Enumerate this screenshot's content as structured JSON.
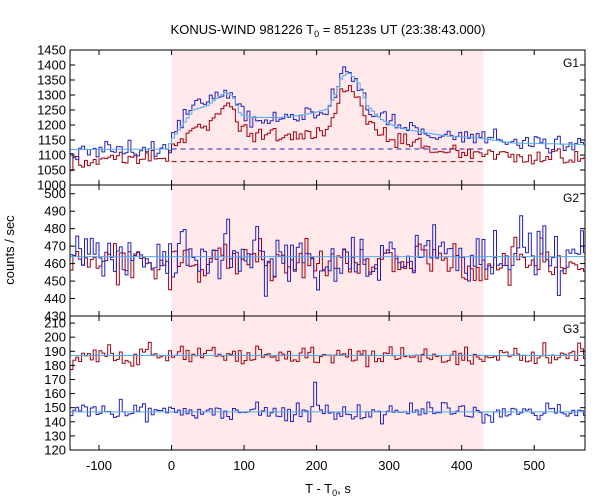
{
  "title": "KONUS-WIND 981226 T",
  "title_sub": "0",
  "title_rest": " = 85123s UT (23:38:43.000)",
  "ylabel": "counts / sec",
  "xlabel_main": "T - T",
  "xlabel_sub": "0",
  "xlabel_rest": ", s",
  "colors": {
    "highlight": "#ffe9ea",
    "blue": "#2222bb",
    "red": "#a00010",
    "fit": "#55aaee"
  },
  "chart_data": {
    "type": "line",
    "x_range": [
      -140,
      570
    ],
    "x_ticks": [
      -100,
      0,
      100,
      200,
      300,
      400,
      500
    ],
    "highlight_interval": [
      0,
      430
    ],
    "bin_width": 4,
    "panels": [
      {
        "label": "G1",
        "ylim": [
          1000,
          1450
        ],
        "y_ticks": [
          1000,
          1050,
          1100,
          1150,
          1200,
          1250,
          1300,
          1350,
          1400,
          1450
        ],
        "background_levels": {
          "blue": 1120,
          "red": 1078
        },
        "background_dash_range": [
          0,
          430
        ],
        "blue_profile": [
          [
            -140,
            1115
          ],
          [
            -5,
            1120
          ],
          [
            0,
            1150
          ],
          [
            15,
            1205
          ],
          [
            30,
            1260
          ],
          [
            50,
            1270
          ],
          [
            60,
            1290
          ],
          [
            75,
            1320
          ],
          [
            85,
            1300
          ],
          [
            95,
            1235
          ],
          [
            110,
            1225
          ],
          [
            150,
            1225
          ],
          [
            180,
            1235
          ],
          [
            200,
            1245
          ],
          [
            215,
            1255
          ],
          [
            225,
            1300
          ],
          [
            235,
            1370
          ],
          [
            245,
            1390
          ],
          [
            258,
            1345
          ],
          [
            270,
            1270
          ],
          [
            290,
            1220
          ],
          [
            310,
            1195
          ],
          [
            340,
            1180
          ],
          [
            380,
            1165
          ],
          [
            420,
            1160
          ],
          [
            470,
            1140
          ],
          [
            570,
            1130
          ]
        ],
        "red_profile": [
          [
            -140,
            1085
          ],
          [
            -5,
            1090
          ],
          [
            0,
            1115
          ],
          [
            15,
            1150
          ],
          [
            30,
            1185
          ],
          [
            50,
            1200
          ],
          [
            60,
            1230
          ],
          [
            75,
            1270
          ],
          [
            85,
            1250
          ],
          [
            95,
            1175
          ],
          [
            110,
            1165
          ],
          [
            150,
            1165
          ],
          [
            180,
            1170
          ],
          [
            200,
            1175
          ],
          [
            215,
            1185
          ],
          [
            225,
            1240
          ],
          [
            235,
            1300
          ],
          [
            245,
            1320
          ],
          [
            258,
            1290
          ],
          [
            270,
            1210
          ],
          [
            290,
            1165
          ],
          [
            310,
            1145
          ],
          [
            340,
            1130
          ],
          [
            380,
            1115
          ],
          [
            420,
            1110
          ],
          [
            470,
            1095
          ],
          [
            570,
            1090
          ]
        ],
        "blue_noise": 15,
        "red_noise": 13,
        "blue_fit_profile": [
          [
            -140,
            1118
          ],
          [
            -5,
            1120
          ],
          [
            0,
            1150
          ],
          [
            15,
            1200
          ],
          [
            30,
            1250
          ],
          [
            50,
            1265
          ],
          [
            60,
            1285
          ],
          [
            75,
            1310
          ],
          [
            85,
            1295
          ],
          [
            95,
            1235
          ],
          [
            110,
            1225
          ],
          [
            150,
            1225
          ],
          [
            180,
            1233
          ],
          [
            200,
            1243
          ],
          [
            215,
            1253
          ],
          [
            225,
            1295
          ],
          [
            235,
            1360
          ],
          [
            245,
            1375
          ],
          [
            258,
            1340
          ],
          [
            270,
            1265
          ],
          [
            290,
            1218
          ],
          [
            310,
            1193
          ],
          [
            340,
            1178
          ],
          [
            380,
            1163
          ],
          [
            420,
            1158
          ],
          [
            470,
            1140
          ],
          [
            570,
            1135
          ]
        ]
      },
      {
        "label": "G2",
        "ylim": [
          430,
          505
        ],
        "y_ticks": [
          430,
          440,
          450,
          460,
          470,
          480,
          490,
          500
        ],
        "blue_mean": 464,
        "red_mean": 461,
        "blue_noise": 8,
        "red_noise": 5.5,
        "fit_level": 464
      },
      {
        "label": "G3",
        "ylim": [
          120,
          215
        ],
        "y_ticks": [
          120,
          130,
          140,
          150,
          160,
          170,
          180,
          190,
          200,
          210
        ],
        "blue_mean": 147,
        "red_mean": 187,
        "blue_noise": 3.2,
        "red_noise": 3.6,
        "blue_spike": {
          "x": 196,
          "y": 168
        },
        "fit_levels": {
          "blue": 147,
          "red": 187
        }
      }
    ]
  }
}
